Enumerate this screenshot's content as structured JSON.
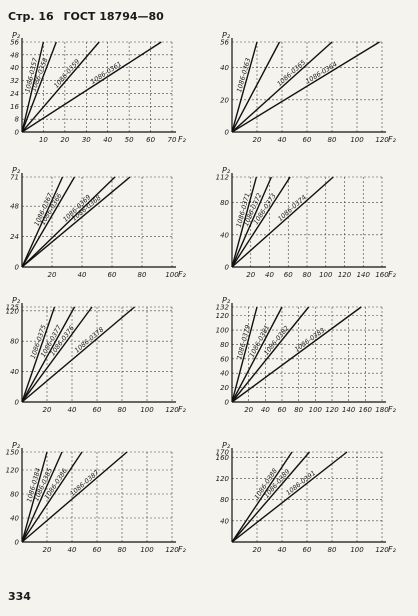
{
  "header": {
    "page_label": "Стр. 16",
    "standard": "ГОСТ 18794—80"
  },
  "page_number": "334",
  "chart_data": [
    {
      "type": "line",
      "ylabel": "P₂",
      "xlabel": "F₂",
      "xlim": [
        0,
        70
      ],
      "ylim": [
        0,
        56
      ],
      "xticks": [
        10,
        20,
        30,
        40,
        50,
        60,
        70
      ],
      "yticks": [
        0,
        8,
        16,
        24,
        32,
        40,
        48,
        56
      ],
      "grid": true,
      "series": [
        {
          "name": "1086-0357",
          "points": [
            [
              0,
              0
            ],
            [
              10,
              56
            ]
          ]
        },
        {
          "name": "1086-0358",
          "points": [
            [
              0,
              0
            ],
            [
              16,
              56
            ]
          ]
        },
        {
          "name": "1086-0359",
          "points": [
            [
              0,
              0
            ],
            [
              36,
              56
            ]
          ]
        },
        {
          "name": "1086-0361",
          "points": [
            [
              0,
              0
            ],
            [
              65,
              56
            ]
          ]
        }
      ]
    },
    {
      "type": "line",
      "ylabel": "P₂",
      "xlabel": "F₂",
      "xlim": [
        0,
        120
      ],
      "ylim": [
        0,
        56
      ],
      "xticks": [
        20,
        40,
        60,
        80,
        100,
        120
      ],
      "yticks": [
        0,
        20,
        40,
        56
      ],
      "grid": true,
      "series": [
        {
          "name": "1086-0363",
          "points": [
            [
              0,
              0
            ],
            [
              20,
              56
            ]
          ]
        },
        {
          "name": "",
          "points": [
            [
              0,
              0
            ],
            [
              38,
              56
            ]
          ]
        },
        {
          "name": "1086-0365",
          "points": [
            [
              0,
              0
            ],
            [
              80,
              56
            ]
          ]
        },
        {
          "name": "1086-0364",
          "points": [
            [
              0,
              0
            ],
            [
              118,
              56
            ]
          ]
        }
      ]
    },
    {
      "type": "line",
      "ylabel": "P₂",
      "xlabel": "F₂",
      "xlim": [
        0,
        100
      ],
      "ylim": [
        0,
        71
      ],
      "xticks": [
        20,
        40,
        60,
        80,
        100
      ],
      "yticks": [
        0,
        24,
        48,
        71
      ],
      "grid": true,
      "series": [
        {
          "name": "1086-0367",
          "points": [
            [
              0,
              0
            ],
            [
              27,
              71
            ]
          ]
        },
        {
          "name": "1086-0366",
          "points": [
            [
              0,
              0
            ],
            [
              35,
              71
            ]
          ]
        },
        {
          "name": "1086-0369",
          "points": [
            [
              0,
              0
            ],
            [
              62,
              71
            ]
          ]
        },
        {
          "name": "1086-0368",
          "points": [
            [
              0,
              0
            ],
            [
              72,
              71
            ]
          ]
        }
      ]
    },
    {
      "type": "line",
      "ylabel": "P₂",
      "xlabel": "F₂",
      "xlim": [
        0,
        160
      ],
      "ylim": [
        0,
        112
      ],
      "xticks": [
        20,
        40,
        60,
        80,
        100,
        120,
        140,
        160
      ],
      "yticks": [
        0,
        40,
        80,
        112
      ],
      "grid": true,
      "series": [
        {
          "name": "1086-0371",
          "points": [
            [
              0,
              0
            ],
            [
              26,
              112
            ]
          ]
        },
        {
          "name": "1086-0372",
          "points": [
            [
              0,
              0
            ],
            [
              42,
              112
            ]
          ]
        },
        {
          "name": "1086-0373",
          "points": [
            [
              0,
              0
            ],
            [
              62,
              112
            ]
          ]
        },
        {
          "name": "1086-0374",
          "points": [
            [
              0,
              0
            ],
            [
              108,
              112
            ]
          ]
        }
      ]
    },
    {
      "type": "line",
      "ylabel": "P₂",
      "xlabel": "F₂",
      "xlim": [
        0,
        120
      ],
      "ylim": [
        0,
        125
      ],
      "xticks": [
        20,
        40,
        60,
        80,
        100,
        120
      ],
      "yticks": [
        0,
        40,
        80,
        120,
        125
      ],
      "grid": true,
      "series": [
        {
          "name": "1086-0375",
          "points": [
            [
              0,
              0
            ],
            [
              26,
              125
            ]
          ]
        },
        {
          "name": "1086-0377",
          "points": [
            [
              0,
              0
            ],
            [
              42,
              125
            ]
          ]
        },
        {
          "name": "1086-0376",
          "points": [
            [
              0,
              0
            ],
            [
              56,
              125
            ]
          ]
        },
        {
          "name": "1086-0378",
          "points": [
            [
              0,
              0
            ],
            [
              90,
              125
            ]
          ]
        }
      ]
    },
    {
      "type": "line",
      "ylabel": "P₂",
      "xlabel": "F₂",
      "xlim": [
        0,
        180
      ],
      "ylim": [
        0,
        132
      ],
      "xticks": [
        20,
        40,
        60,
        80,
        100,
        120,
        140,
        160,
        180
      ],
      "yticks": [
        0,
        20,
        40,
        60,
        80,
        100,
        120,
        132
      ],
      "grid": true,
      "series": [
        {
          "name": "1086-0379",
          "points": [
            [
              0,
              0
            ],
            [
              30,
              132
            ]
          ]
        },
        {
          "name": "1086-0381",
          "points": [
            [
              0,
              0
            ],
            [
              60,
              132
            ]
          ]
        },
        {
          "name": "1086-0382",
          "points": [
            [
              0,
              0
            ],
            [
              92,
              132
            ]
          ]
        },
        {
          "name": "1086-0383",
          "points": [
            [
              0,
              0
            ],
            [
              155,
              132
            ]
          ]
        }
      ]
    },
    {
      "type": "line",
      "ylabel": "P₂",
      "xlabel": "F₂",
      "xlim": [
        0,
        120
      ],
      "ylim": [
        0,
        150
      ],
      "xticks": [
        20,
        40,
        60,
        80,
        100,
        120
      ],
      "yticks": [
        0,
        40,
        80,
        120,
        150
      ],
      "grid": true,
      "series": [
        {
          "name": "1086-0384",
          "points": [
            [
              0,
              0
            ],
            [
              20,
              150
            ]
          ]
        },
        {
          "name": "1086-0385",
          "points": [
            [
              0,
              0
            ],
            [
              32,
              150
            ]
          ]
        },
        {
          "name": "1086-0386",
          "points": [
            [
              0,
              0
            ],
            [
              48,
              150
            ]
          ]
        },
        {
          "name": "1086-0387",
          "points": [
            [
              0,
              0
            ],
            [
              84,
              150
            ]
          ]
        }
      ]
    },
    {
      "type": "line",
      "ylabel": "P₂",
      "xlabel": "F₂",
      "xlim": [
        0,
        120
      ],
      "ylim": [
        0,
        170
      ],
      "xticks": [
        20,
        40,
        60,
        80,
        100,
        120
      ],
      "yticks": [
        40,
        80,
        120,
        160,
        170
      ],
      "grid": true,
      "series": [
        {
          "name": "1086-0388",
          "points": [
            [
              0,
              0
            ],
            [
              48,
              170
            ]
          ]
        },
        {
          "name": "1086-0389",
          "points": [
            [
              0,
              0
            ],
            [
              62,
              170
            ]
          ]
        },
        {
          "name": "1086-0391",
          "points": [
            [
              0,
              0
            ],
            [
              92,
              170
            ]
          ]
        }
      ]
    }
  ]
}
